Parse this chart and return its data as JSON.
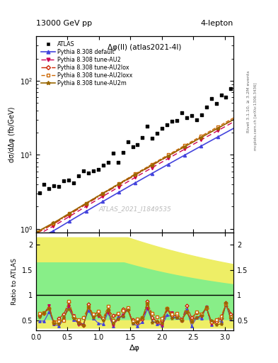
{
  "title_top": "13000 GeV pp",
  "title_right": "4-lepton",
  "plot_title": "Δφ(ll) (atlas2021-4l)",
  "xlabel": "Δφ",
  "ylabel_main": "dσ/dΔφ (fb/GeV)",
  "ylabel_ratio": "Ratio to ATLAS",
  "watermark": "ATLAS_2021_I1849535",
  "right_label_top": "Rivet 3.1.10, ≥ 3.2M events",
  "right_label_bot": "mcplots.cern.ch [arXiv:1306.3436]",
  "xlim": [
    0,
    3.14159
  ],
  "ylim_main_log": [
    0.9,
    400
  ],
  "ylim_ratio": [
    0.3,
    2.25
  ],
  "legend_entries": [
    "ATLAS",
    "Pythia 8.308 default",
    "Pythia 8.308 tune-AU2",
    "Pythia 8.308 tune-AU2lox",
    "Pythia 8.308 tune-AU2loxx",
    "Pythia 8.308 tune-AU2m"
  ],
  "colors": {
    "atlas": "#000000",
    "default": "#4444dd",
    "AU2": "#cc0055",
    "AU2lox": "#cc2200",
    "AU2loxx": "#cc6600",
    "AU2m": "#996600"
  },
  "band_green": "#88ee88",
  "band_yellow": "#eeee66"
}
